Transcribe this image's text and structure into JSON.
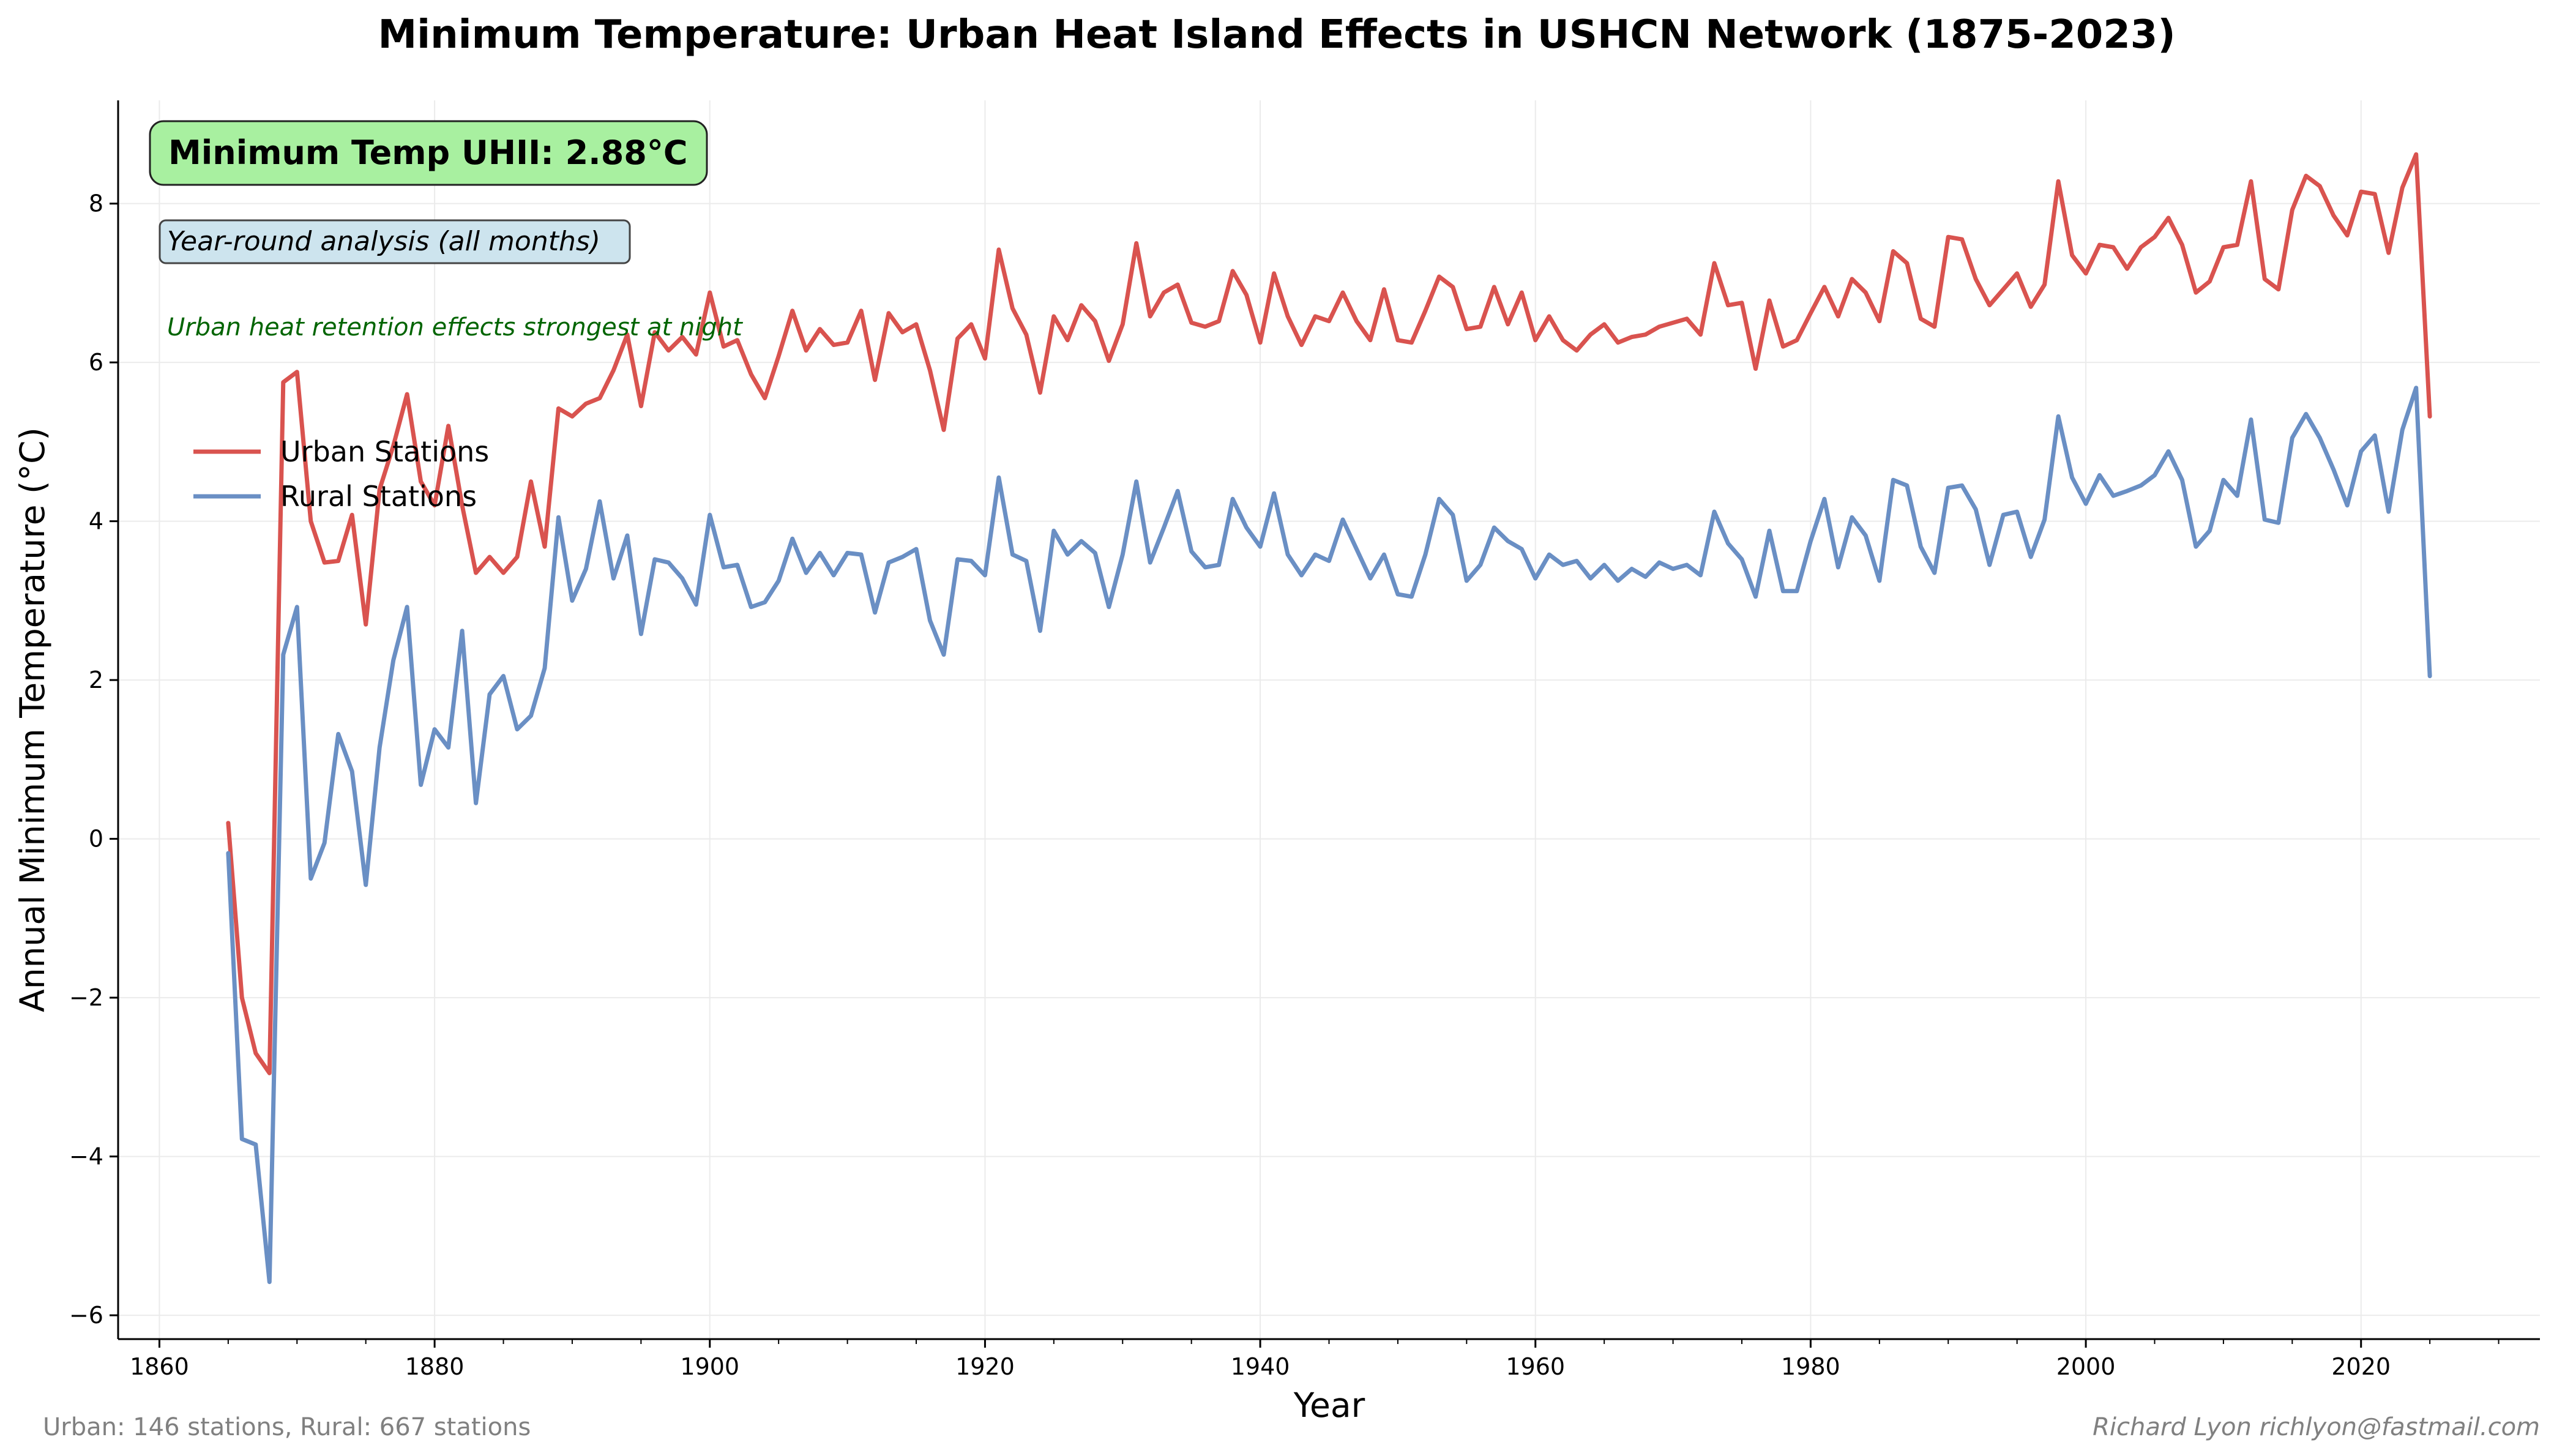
{
  "colors": {
    "urban": "#d9534f",
    "rural": "#6a8fc4",
    "uhii_box": "#a8f0a0",
    "analysis_box": "#cde4ee",
    "note": "#006400",
    "grid": "#ebebeb"
  },
  "chart_data": {
    "type": "line",
    "title": "Minimum Temperature: Urban Heat Island Effects in USHCN Network (1875-2023)",
    "xlabel": "Year",
    "ylabel": "Annual Minimum Temperature (°C)",
    "xlim": [
      1857,
      2033
    ],
    "ylim": [
      -6.3,
      9.3
    ],
    "x_ticks": [
      1860,
      1880,
      1900,
      1920,
      1940,
      1960,
      1980,
      2000,
      2020
    ],
    "y_ticks": [
      -6,
      -4,
      -2,
      0,
      2,
      4,
      6,
      8
    ],
    "x_tick_labels": [
      "1860",
      "1880",
      "1900",
      "1920",
      "1940",
      "1960",
      "1980",
      "2000",
      "2020"
    ],
    "y_tick_labels": [
      "−6",
      "−4",
      "−2",
      "0",
      "2",
      "4",
      "6",
      "8"
    ],
    "grid": true,
    "legend_position": "upper-left",
    "start_year": 1865,
    "series": [
      {
        "name": "Urban Stations",
        "color": "#d9534f",
        "values": [
          0.2,
          -2.0,
          -2.7,
          -2.95,
          5.75,
          5.88,
          4.0,
          3.48,
          3.5,
          4.08,
          2.7,
          4.4,
          4.95,
          5.6,
          4.5,
          4.2,
          5.2,
          4.2,
          3.35,
          3.55,
          3.35,
          3.55,
          4.5,
          3.68,
          5.42,
          5.32,
          5.48,
          5.55,
          5.9,
          6.35,
          5.45,
          6.38,
          6.15,
          6.32,
          6.1,
          6.88,
          6.2,
          6.28,
          5.85,
          5.55,
          6.08,
          6.65,
          6.15,
          6.42,
          6.22,
          6.25,
          6.65,
          5.78,
          6.62,
          6.38,
          6.48,
          5.9,
          5.15,
          6.3,
          6.48,
          6.05,
          7.42,
          6.68,
          6.35,
          5.62,
          6.58,
          6.28,
          6.72,
          6.52,
          6.02,
          6.48,
          7.5,
          6.58,
          6.88,
          6.98,
          6.5,
          6.45,
          6.52,
          7.15,
          6.85,
          6.25,
          7.12,
          6.58,
          6.22,
          6.58,
          6.52,
          6.88,
          6.52,
          6.28,
          6.92,
          6.28,
          6.25,
          6.65,
          7.08,
          6.95,
          6.42,
          6.45,
          6.95,
          6.48,
          6.88,
          6.28,
          6.58,
          6.28,
          6.15,
          6.35,
          6.48,
          6.25,
          6.32,
          6.35,
          6.45,
          6.5,
          6.55,
          6.35,
          7.25,
          6.72,
          6.75,
          5.92,
          6.78,
          6.2,
          6.28,
          6.62,
          6.95,
          6.58,
          7.05,
          6.88,
          6.52,
          7.4,
          7.25,
          6.55,
          6.45,
          7.58,
          7.55,
          7.05,
          6.72,
          6.92,
          7.12,
          6.7,
          6.98,
          8.28,
          7.35,
          7.12,
          7.48,
          7.45,
          7.18,
          7.45,
          7.58,
          7.82,
          7.48,
          6.88,
          7.02,
          7.45,
          7.48,
          8.28,
          7.05,
          6.92,
          7.92,
          8.35,
          8.22,
          7.85,
          7.6,
          8.15,
          8.12,
          7.38,
          8.2,
          8.62,
          5.32
        ]
      },
      {
        "name": "Rural Stations",
        "color": "#6a8fc4",
        "values": [
          -0.18,
          -3.78,
          -3.85,
          -5.58,
          2.32,
          2.92,
          -0.5,
          -0.05,
          1.32,
          0.85,
          -0.58,
          1.15,
          2.25,
          2.92,
          0.68,
          1.38,
          1.15,
          2.62,
          0.45,
          1.82,
          2.05,
          1.38,
          1.55,
          2.15,
          4.05,
          3.0,
          3.4,
          4.25,
          3.28,
          3.82,
          2.58,
          3.52,
          3.48,
          3.28,
          2.95,
          4.08,
          3.42,
          3.45,
          2.92,
          2.98,
          3.25,
          3.78,
          3.35,
          3.6,
          3.32,
          3.6,
          3.58,
          2.85,
          3.48,
          3.55,
          3.65,
          2.75,
          2.32,
          3.52,
          3.5,
          3.32,
          4.55,
          3.58,
          3.5,
          2.62,
          3.88,
          3.58,
          3.75,
          3.6,
          2.92,
          3.58,
          4.5,
          3.48,
          3.92,
          4.38,
          3.62,
          3.42,
          3.45,
          4.28,
          3.92,
          3.68,
          4.35,
          3.58,
          3.32,
          3.58,
          3.5,
          4.02,
          3.65,
          3.28,
          3.58,
          3.08,
          3.05,
          3.58,
          4.28,
          4.08,
          3.25,
          3.45,
          3.92,
          3.75,
          3.65,
          3.28,
          3.58,
          3.45,
          3.5,
          3.28,
          3.45,
          3.25,
          3.4,
          3.3,
          3.48,
          3.4,
          3.45,
          3.32,
          4.12,
          3.72,
          3.52,
          3.05,
          3.88,
          3.12,
          3.12,
          3.75,
          4.28,
          3.42,
          4.05,
          3.82,
          3.25,
          4.52,
          4.45,
          3.68,
          3.35,
          4.42,
          4.45,
          4.15,
          3.45,
          4.08,
          4.12,
          3.55,
          4.02,
          5.32,
          4.55,
          4.22,
          4.58,
          4.32,
          4.38,
          4.45,
          4.58,
          4.88,
          4.52,
          3.68,
          3.88,
          4.52,
          4.32,
          5.28,
          4.02,
          3.98,
          5.05,
          5.35,
          5.05,
          4.65,
          4.2,
          4.88,
          5.08,
          4.12,
          5.15,
          5.68,
          2.05
        ]
      }
    ]
  },
  "annotations": {
    "uhii": "Minimum Temp UHII: 2.88°C",
    "analysis": "Year-round analysis (all months)",
    "note": "Urban heat retention effects strongest at night"
  },
  "footer": {
    "left": "Urban: 146 stations, Rural: 667 stations",
    "right": "Richard Lyon richlyon@fastmail.com"
  }
}
